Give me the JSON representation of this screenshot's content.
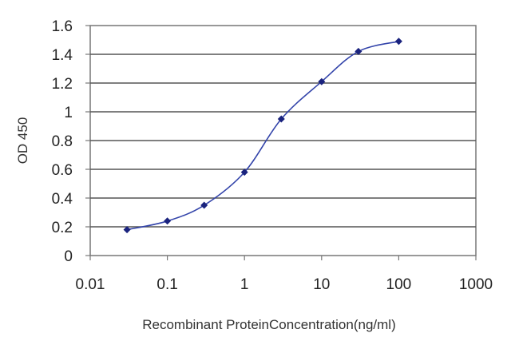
{
  "chart_data": {
    "type": "line",
    "title": "",
    "xlabel": "Recombinant ProteinConcentration(ng/ml)",
    "ylabel": "OD 450",
    "x_scale": "log",
    "xlim": [
      0.01,
      1000
    ],
    "ylim": [
      0,
      1.6
    ],
    "x_ticks": [
      "0.01",
      "0.1",
      "1",
      "10",
      "100",
      "1000"
    ],
    "y_ticks": [
      "0",
      "0.2",
      "0.4",
      "0.6",
      "0.8",
      "1",
      "1.2",
      "1.4",
      "1.6"
    ],
    "grid": "horizontal",
    "legend": "none",
    "series": [
      {
        "x": [
          0.03,
          0.1,
          0.3,
          1,
          3,
          10,
          30,
          100
        ],
        "y": [
          0.18,
          0.24,
          0.35,
          0.58,
          0.95,
          1.21,
          1.42,
          1.49
        ],
        "color": "#3344aa",
        "marker": "diamond",
        "marker_color": "#1a237e"
      }
    ],
    "colors": {
      "plot_background": "#ffffff",
      "grid": "#555555",
      "frame": "#777777"
    }
  }
}
